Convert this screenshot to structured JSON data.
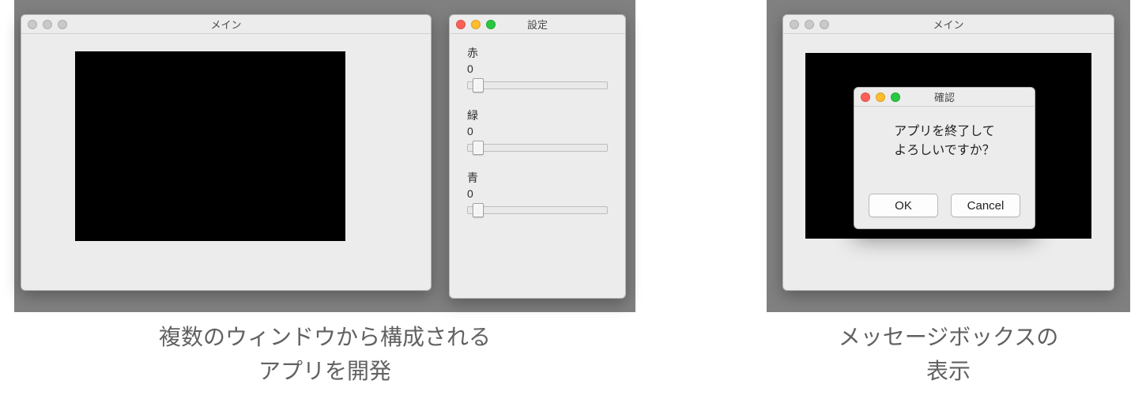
{
  "captions": {
    "left": "複数のウィンドウから構成される\nアプリを開発",
    "right": "メッセージボックスの\n表示"
  },
  "colors": {
    "desktop_bg": "#808080",
    "window_bg": "#ececec",
    "canvas_bg": "#000000",
    "traffic_red": "#ff5f57",
    "traffic_yellow": "#ffbd2e",
    "traffic_green": "#28c840",
    "traffic_inactive": "#c9c9c9",
    "caption_text": "#616161"
  },
  "left_panel": {
    "main_window": {
      "title": "メイン",
      "active": false
    },
    "settings_window": {
      "title": "設定",
      "active": true,
      "sliders": [
        {
          "label": "赤",
          "value": 0,
          "position_pct": 4
        },
        {
          "label": "緑",
          "value": 0,
          "position_pct": 4
        },
        {
          "label": "青",
          "value": 0,
          "position_pct": 4
        }
      ]
    }
  },
  "right_panel": {
    "main_window": {
      "title": "メイン",
      "active": false
    },
    "dialog": {
      "title": "確認",
      "active": true,
      "message": "アプリを終了して\nよろしいですか？",
      "ok_label": "OK",
      "cancel_label": "Cancel"
    }
  }
}
